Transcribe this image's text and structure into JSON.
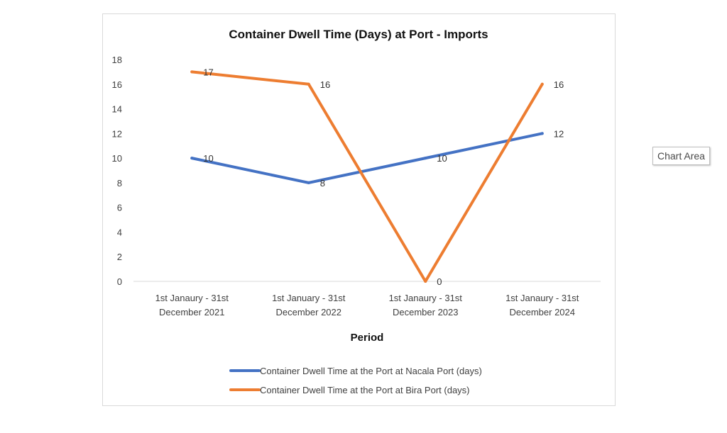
{
  "tooltip": "Chart Area",
  "chart_data": {
    "type": "line",
    "title": "Container Dwell Time (Days) at Port - Imports",
    "xlabel": "Period",
    "ylabel": "",
    "categories": [
      [
        "1st Janaury - 31st",
        "December 2021"
      ],
      [
        "1st January - 31st",
        "December 2022"
      ],
      [
        "1st Janaury - 31st",
        "December 2023"
      ],
      [
        "1st Janaury - 31st",
        "December 2024"
      ]
    ],
    "ylim": [
      0,
      18
    ],
    "yticks": [
      0,
      2,
      4,
      6,
      8,
      10,
      12,
      14,
      16,
      18
    ],
    "grid": false,
    "legend_position": "bottom",
    "data_labels": true,
    "series": [
      {
        "name": "Container Dwell Time at the Port at Nacala Port (days)",
        "color": "#4472C4",
        "values": [
          10,
          8,
          10,
          12
        ]
      },
      {
        "name": "Container Dwell Time at the Port at Bira Port (days)",
        "color": "#ED7D31",
        "values": [
          17,
          16,
          0,
          16
        ]
      }
    ]
  }
}
